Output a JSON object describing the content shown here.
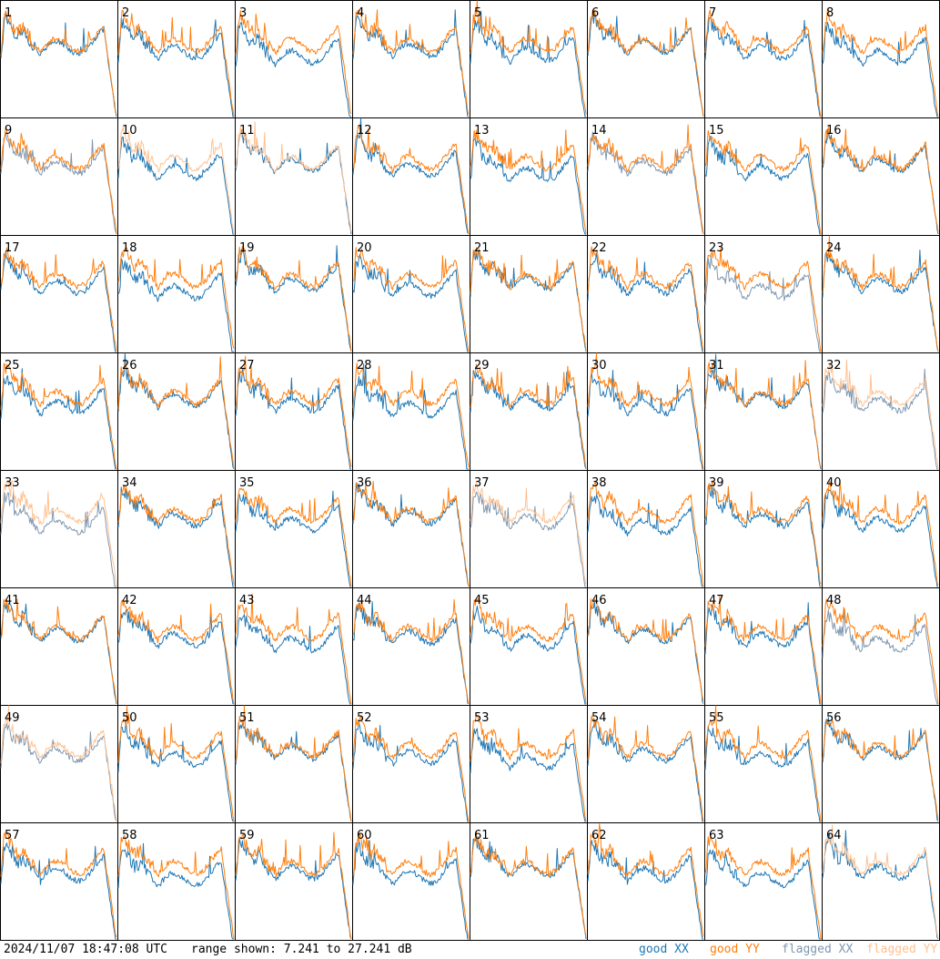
{
  "footer": {
    "timestamp": "2024/11/07 18:47:08 UTC",
    "range_text": "range shown: 7.241 to 27.241 dB"
  },
  "legend": [
    {
      "label": "good XX",
      "color": "#1f77b4"
    },
    {
      "label": "good YY",
      "color": "#ff7f0e"
    },
    {
      "label": "flagged XX",
      "color": "#7f97b0"
    },
    {
      "label": "flagged YY",
      "color": "#ffc190"
    }
  ],
  "chart_data": {
    "type": "line",
    "ylim": [
      7.241,
      27.241
    ],
    "grid": false,
    "legend_placement": "bottom-right",
    "panels": [
      {
        "label": "1",
        "status": [
          "good",
          "good"
        ]
      },
      {
        "label": "2",
        "status": [
          "good",
          "good"
        ]
      },
      {
        "label": "3",
        "status": [
          "good",
          "good"
        ]
      },
      {
        "label": "4",
        "status": [
          "good",
          "good"
        ]
      },
      {
        "label": "5",
        "status": [
          "good",
          "good"
        ]
      },
      {
        "label": "6",
        "status": [
          "good",
          "good"
        ]
      },
      {
        "label": "7",
        "status": [
          "good",
          "good"
        ]
      },
      {
        "label": "8",
        "status": [
          "good",
          "good"
        ]
      },
      {
        "label": "9",
        "status": [
          "flagged",
          "good"
        ]
      },
      {
        "label": "10",
        "status": [
          "good",
          "flagged"
        ]
      },
      {
        "label": "11",
        "status": [
          "good",
          "flagged"
        ]
      },
      {
        "label": "12",
        "status": [
          "good",
          "good"
        ]
      },
      {
        "label": "13",
        "status": [
          "good",
          "good"
        ]
      },
      {
        "label": "14",
        "status": [
          "flagged",
          "good"
        ]
      },
      {
        "label": "15",
        "status": [
          "good",
          "good"
        ]
      },
      {
        "label": "16",
        "status": [
          "good",
          "good"
        ]
      },
      {
        "label": "17",
        "status": [
          "good",
          "good"
        ]
      },
      {
        "label": "18",
        "status": [
          "good",
          "good"
        ]
      },
      {
        "label": "19",
        "status": [
          "good",
          "good"
        ]
      },
      {
        "label": "20",
        "status": [
          "good",
          "good"
        ]
      },
      {
        "label": "21",
        "status": [
          "good",
          "good"
        ]
      },
      {
        "label": "22",
        "status": [
          "good",
          "good"
        ]
      },
      {
        "label": "23",
        "status": [
          "flagged",
          "good"
        ]
      },
      {
        "label": "24",
        "status": [
          "good",
          "good"
        ]
      },
      {
        "label": "25",
        "status": [
          "good",
          "good"
        ]
      },
      {
        "label": "26",
        "status": [
          "good",
          "good"
        ]
      },
      {
        "label": "27",
        "status": [
          "good",
          "good"
        ]
      },
      {
        "label": "28",
        "status": [
          "good",
          "good"
        ]
      },
      {
        "label": "29",
        "status": [
          "good",
          "good"
        ]
      },
      {
        "label": "30",
        "status": [
          "good",
          "good"
        ]
      },
      {
        "label": "31",
        "status": [
          "good",
          "good"
        ]
      },
      {
        "label": "32",
        "status": [
          "flagged",
          "flagged"
        ]
      },
      {
        "label": "33",
        "status": [
          "flagged",
          "flagged"
        ]
      },
      {
        "label": "34",
        "status": [
          "good",
          "good"
        ]
      },
      {
        "label": "35",
        "status": [
          "good",
          "good"
        ]
      },
      {
        "label": "36",
        "status": [
          "good",
          "good"
        ]
      },
      {
        "label": "37",
        "status": [
          "flagged",
          "flagged"
        ]
      },
      {
        "label": "38",
        "status": [
          "good",
          "good"
        ]
      },
      {
        "label": "39",
        "status": [
          "good",
          "good"
        ]
      },
      {
        "label": "40",
        "status": [
          "good",
          "good"
        ]
      },
      {
        "label": "41",
        "status": [
          "good",
          "good"
        ]
      },
      {
        "label": "42",
        "status": [
          "good",
          "good"
        ]
      },
      {
        "label": "43",
        "status": [
          "good",
          "good"
        ]
      },
      {
        "label": "44",
        "status": [
          "good",
          "good"
        ]
      },
      {
        "label": "45",
        "status": [
          "good",
          "good"
        ]
      },
      {
        "label": "46",
        "status": [
          "good",
          "good"
        ]
      },
      {
        "label": "47",
        "status": [
          "good",
          "good"
        ]
      },
      {
        "label": "48",
        "status": [
          "flagged",
          "good"
        ]
      },
      {
        "label": "49",
        "status": [
          "flagged",
          "flagged"
        ]
      },
      {
        "label": "50",
        "status": [
          "good",
          "good"
        ]
      },
      {
        "label": "51",
        "status": [
          "good",
          "good"
        ]
      },
      {
        "label": "52",
        "status": [
          "good",
          "good"
        ]
      },
      {
        "label": "53",
        "status": [
          "good",
          "good"
        ]
      },
      {
        "label": "54",
        "status": [
          "good",
          "good"
        ]
      },
      {
        "label": "55",
        "status": [
          "good",
          "good"
        ]
      },
      {
        "label": "56",
        "status": [
          "good",
          "good"
        ]
      },
      {
        "label": "57",
        "status": [
          "good",
          "good"
        ]
      },
      {
        "label": "58",
        "status": [
          "good",
          "good"
        ]
      },
      {
        "label": "59",
        "status": [
          "good",
          "good"
        ]
      },
      {
        "label": "60",
        "status": [
          "good",
          "good"
        ]
      },
      {
        "label": "61",
        "status": [
          "good",
          "good"
        ]
      },
      {
        "label": "62",
        "status": [
          "good",
          "good"
        ]
      },
      {
        "label": "63",
        "status": [
          "good",
          "good"
        ]
      },
      {
        "label": "64",
        "status": [
          "good",
          "flagged"
        ]
      }
    ]
  }
}
